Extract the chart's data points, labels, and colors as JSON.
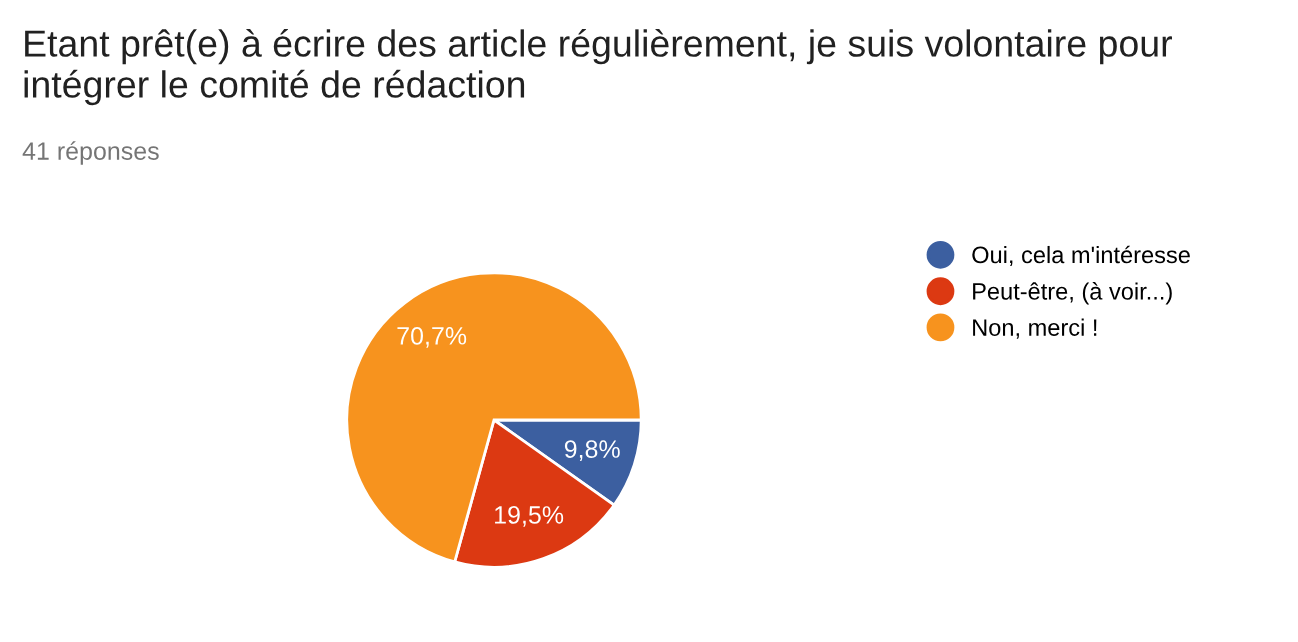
{
  "chart_data": {
    "type": "pie",
    "title": "Etant prêt(e) à écrire des article régulièrement, je suis volontaire pour intégrer le comité de rédaction",
    "subtitle": "41 réponses",
    "categories": [
      "Oui, cela m'intéresse",
      "Peut-être, (à voir...)",
      "Non, merci !"
    ],
    "values": [
      9.8,
      19.5,
      70.7
    ],
    "colors": [
      "#3c5fa0",
      "#dc3912",
      "#f7931e"
    ],
    "value_labels": [
      "9,8%",
      "19,5%",
      "70,7%"
    ],
    "legend": "right"
  }
}
